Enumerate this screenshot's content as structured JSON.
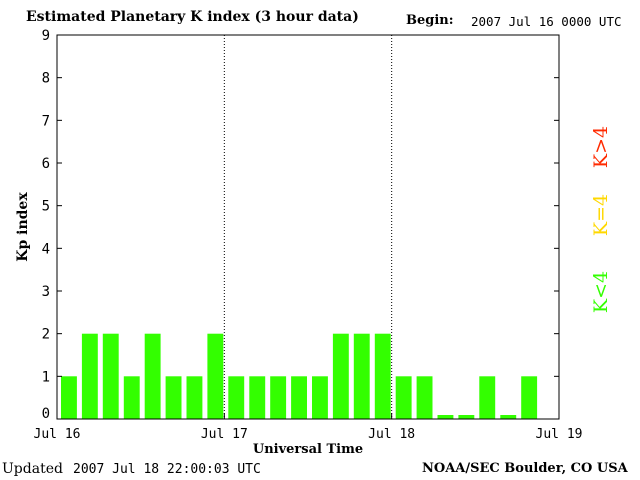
{
  "header": {
    "title": "Estimated Planetary K index (3 hour data)",
    "begin_label": "Begin:",
    "begin_value": "2007 Jul 16 0000 UTC"
  },
  "footer": {
    "updated_label": "Updated",
    "updated_value": "2007 Jul 18 22:00:03 UTC",
    "credit": "NOAA/SEC Boulder, CO USA"
  },
  "legend": {
    "items": [
      {
        "label": "K>4",
        "color": "#ff2a00"
      },
      {
        "label": "K=4",
        "color": "#ffd800"
      },
      {
        "label": "K<4",
        "color": "#33ff00"
      }
    ]
  },
  "chart_data": {
    "type": "bar",
    "title": "Estimated Planetary K index (3 hour data)",
    "xlabel": "Universal Time",
    "ylabel": "Kp index",
    "ylim": [
      0,
      9
    ],
    "yticks": [
      0,
      1,
      2,
      3,
      4,
      5,
      6,
      7,
      8,
      9
    ],
    "x_tick_labels": [
      "Jul 16",
      "Jul 17",
      "Jul 18",
      "Jul 19"
    ],
    "interval_hours": 3,
    "values": [
      1,
      2,
      2,
      1,
      2,
      1,
      1,
      2,
      1,
      1,
      1,
      1,
      1,
      2,
      2,
      2,
      1,
      1,
      0,
      0,
      1,
      0,
      1
    ],
    "bar_color": "#33ff00",
    "grid": false,
    "day_separators": "dotted"
  }
}
